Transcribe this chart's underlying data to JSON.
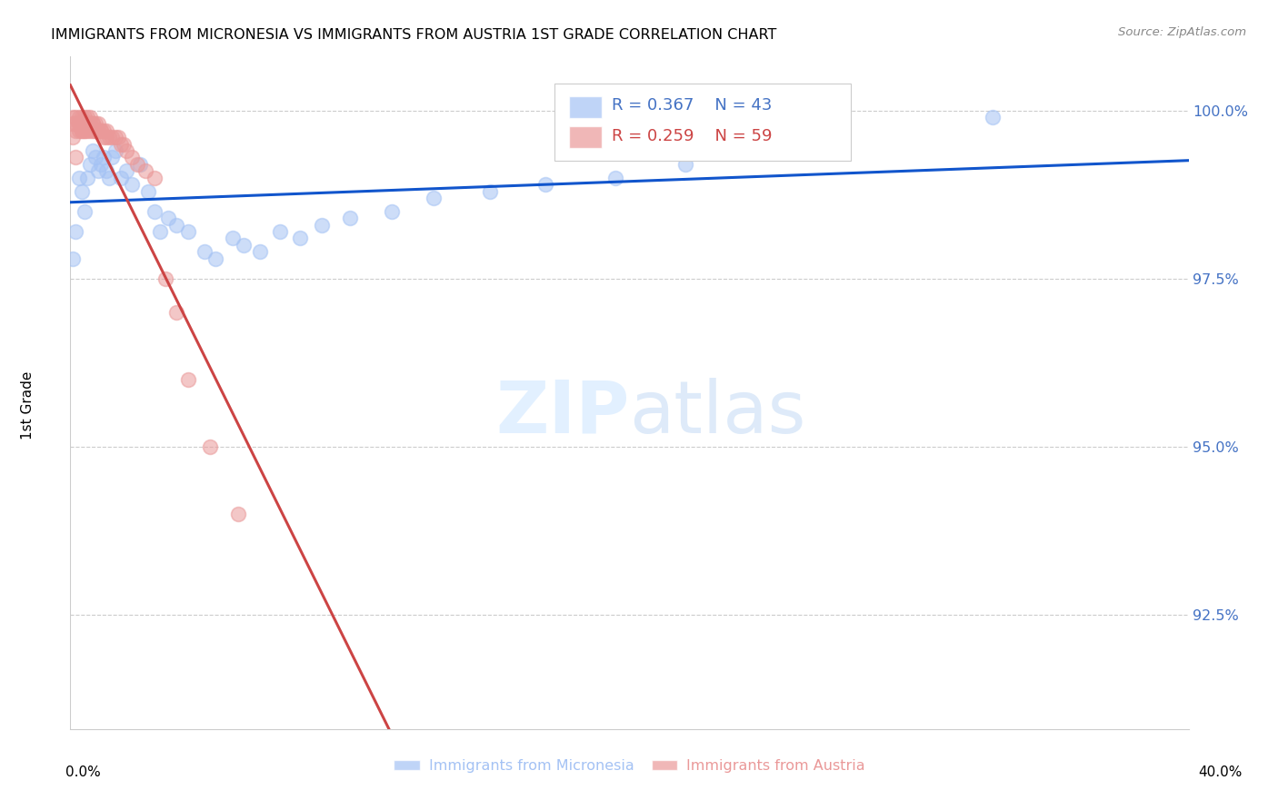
{
  "title": "IMMIGRANTS FROM MICRONESIA VS IMMIGRANTS FROM AUSTRIA 1ST GRADE CORRELATION CHART",
  "source": "Source: ZipAtlas.com",
  "ylabel": "1st Grade",
  "ytick_labels": [
    "100.0%",
    "97.5%",
    "95.0%",
    "92.5%"
  ],
  "ytick_values": [
    1.0,
    0.975,
    0.95,
    0.925
  ],
  "xlim": [
    0.0,
    0.4
  ],
  "ylim": [
    0.908,
    1.008
  ],
  "legend_r_micronesia": "R = 0.367",
  "legend_n_micronesia": "N = 43",
  "legend_r_austria": "R = 0.259",
  "legend_n_austria": "N = 59",
  "color_micronesia": "#a4c2f4",
  "color_austria": "#ea9999",
  "trendline_micronesia": "#1155cc",
  "trendline_austria": "#cc4444",
  "micronesia_x": [
    0.001,
    0.002,
    0.003,
    0.004,
    0.005,
    0.006,
    0.007,
    0.008,
    0.009,
    0.01,
    0.011,
    0.012,
    0.013,
    0.014,
    0.015,
    0.016,
    0.018,
    0.02,
    0.022,
    0.025,
    0.028,
    0.03,
    0.032,
    0.035,
    0.038,
    0.042,
    0.048,
    0.052,
    0.058,
    0.062,
    0.068,
    0.075,
    0.082,
    0.09,
    0.1,
    0.115,
    0.13,
    0.15,
    0.17,
    0.195,
    0.22,
    0.27,
    0.33
  ],
  "micronesia_y": [
    0.978,
    0.982,
    0.99,
    0.988,
    0.985,
    0.99,
    0.992,
    0.994,
    0.993,
    0.991,
    0.992,
    0.993,
    0.991,
    0.99,
    0.993,
    0.994,
    0.99,
    0.991,
    0.989,
    0.992,
    0.988,
    0.985,
    0.982,
    0.984,
    0.983,
    0.982,
    0.979,
    0.978,
    0.981,
    0.98,
    0.979,
    0.982,
    0.981,
    0.983,
    0.984,
    0.985,
    0.987,
    0.988,
    0.989,
    0.99,
    0.992,
    0.995,
    0.999
  ],
  "austria_x": [
    0.001,
    0.001,
    0.002,
    0.002,
    0.002,
    0.003,
    0.003,
    0.003,
    0.003,
    0.004,
    0.004,
    0.004,
    0.004,
    0.005,
    0.005,
    0.005,
    0.005,
    0.005,
    0.006,
    0.006,
    0.006,
    0.006,
    0.007,
    0.007,
    0.007,
    0.007,
    0.008,
    0.008,
    0.008,
    0.009,
    0.009,
    0.009,
    0.01,
    0.01,
    0.01,
    0.011,
    0.011,
    0.012,
    0.012,
    0.013,
    0.013,
    0.014,
    0.015,
    0.016,
    0.017,
    0.018,
    0.019,
    0.02,
    0.022,
    0.024,
    0.027,
    0.03,
    0.034,
    0.038,
    0.042,
    0.05,
    0.06,
    0.002,
    0.001
  ],
  "austria_y": [
    0.999,
    0.998,
    0.999,
    0.998,
    0.997,
    0.999,
    0.998,
    0.998,
    0.997,
    0.999,
    0.998,
    0.997,
    0.997,
    0.999,
    0.998,
    0.998,
    0.997,
    0.997,
    0.999,
    0.998,
    0.998,
    0.997,
    0.999,
    0.998,
    0.998,
    0.997,
    0.998,
    0.998,
    0.997,
    0.998,
    0.997,
    0.997,
    0.998,
    0.997,
    0.997,
    0.997,
    0.997,
    0.997,
    0.996,
    0.997,
    0.996,
    0.996,
    0.996,
    0.996,
    0.996,
    0.995,
    0.995,
    0.994,
    0.993,
    0.992,
    0.991,
    0.99,
    0.975,
    0.97,
    0.96,
    0.95,
    0.94,
    0.993,
    0.996
  ]
}
